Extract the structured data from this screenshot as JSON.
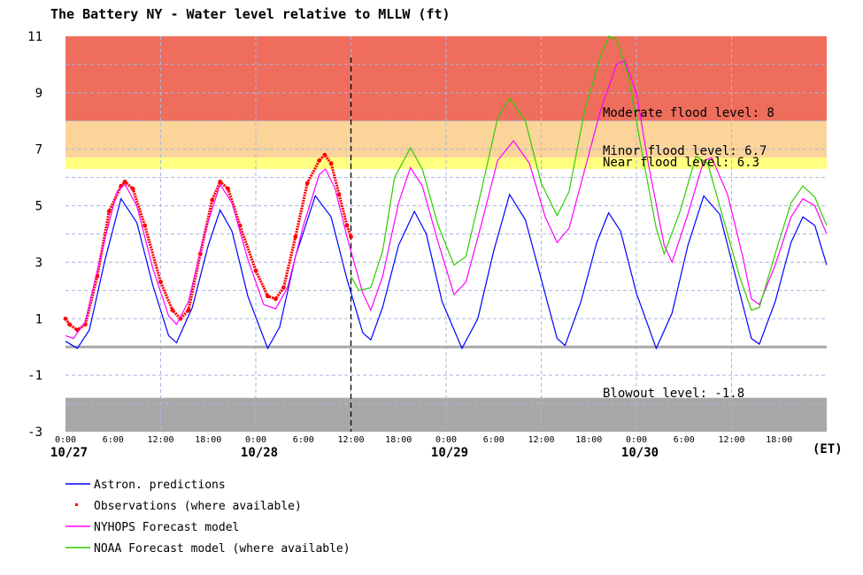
{
  "chart_data": {
    "type": "line",
    "title": "The Battery NY  -  Water level relative to MLLW (ft)",
    "time_unit_label": "(ET)",
    "ylim": [
      -3,
      11
    ],
    "yticks": [
      11,
      9,
      7,
      5,
      3,
      1,
      -1,
      -3
    ],
    "xlim_hours": [
      0,
      96
    ],
    "xticks": [
      {
        "hour": 0,
        "label": "0:00"
      },
      {
        "hour": 6,
        "label": "6:00"
      },
      {
        "hour": 12,
        "label": "12:00"
      },
      {
        "hour": 18,
        "label": "18:00"
      },
      {
        "hour": 24,
        "label": "0:00"
      },
      {
        "hour": 30,
        "label": "6:00"
      },
      {
        "hour": 36,
        "label": "12:00"
      },
      {
        "hour": 42,
        "label": "18:00"
      },
      {
        "hour": 48,
        "label": "0:00"
      },
      {
        "hour": 54,
        "label": "6:00"
      },
      {
        "hour": 60,
        "label": "12:00"
      },
      {
        "hour": 66,
        "label": "18:00"
      },
      {
        "hour": 72,
        "label": "0:00"
      },
      {
        "hour": 78,
        "label": "6:00"
      },
      {
        "hour": 84,
        "label": "12:00"
      },
      {
        "hour": 90,
        "label": "18:00"
      }
    ],
    "dates": [
      {
        "hour": 0,
        "label": "10/27"
      },
      {
        "hour": 24,
        "label": "10/28"
      },
      {
        "hour": 48,
        "label": "10/29"
      },
      {
        "hour": 72,
        "label": "10/30"
      }
    ],
    "now_hour": 36,
    "zones": [
      {
        "name": "moderate",
        "from": 8,
        "to": 11,
        "color": "#ee6d5d",
        "label": "Moderate flood level: 8"
      },
      {
        "name": "minor",
        "from": 6.7,
        "to": 8,
        "color": "#fbd49a",
        "label": "Minor flood level: 6.7"
      },
      {
        "name": "near",
        "from": 6.3,
        "to": 6.7,
        "color": "#ffff80",
        "label": "Near flood level: 6.3"
      },
      {
        "name": "blowout",
        "from": -3,
        "to": -1.8,
        "color": "#a8a8a8",
        "label": "Blowout level: -1.8"
      }
    ],
    "zero_line": 0,
    "series": [
      {
        "name": "Astron. predictions",
        "color": "#0000ff",
        "style": "line",
        "points": [
          [
            0,
            0.2
          ],
          [
            1.5,
            -0.05
          ],
          [
            3,
            0.6
          ],
          [
            5,
            3.1
          ],
          [
            7,
            5.25
          ],
          [
            9,
            4.4
          ],
          [
            11,
            2.2
          ],
          [
            13,
            0.4
          ],
          [
            14,
            0.15
          ],
          [
            16,
            1.4
          ],
          [
            18,
            3.6
          ],
          [
            19.5,
            4.85
          ],
          [
            21,
            4.1
          ],
          [
            23,
            1.8
          ],
          [
            25.5,
            -0.05
          ],
          [
            27,
            0.7
          ],
          [
            29,
            3.2
          ],
          [
            31.5,
            5.35
          ],
          [
            33.5,
            4.6
          ],
          [
            35.5,
            2.4
          ],
          [
            37.5,
            0.5
          ],
          [
            38.5,
            0.25
          ],
          [
            40,
            1.4
          ],
          [
            42,
            3.6
          ],
          [
            44,
            4.8
          ],
          [
            45.5,
            4.0
          ],
          [
            47.5,
            1.6
          ],
          [
            50,
            -0.05
          ],
          [
            52,
            1.0
          ],
          [
            54,
            3.4
          ],
          [
            56,
            5.4
          ],
          [
            58,
            4.5
          ],
          [
            60,
            2.4
          ],
          [
            62,
            0.3
          ],
          [
            63,
            0.05
          ],
          [
            65,
            1.6
          ],
          [
            67,
            3.7
          ],
          [
            68.5,
            4.75
          ],
          [
            70,
            4.1
          ],
          [
            72,
            1.9
          ],
          [
            74.5,
            -0.05
          ],
          [
            76.5,
            1.2
          ],
          [
            78.5,
            3.6
          ],
          [
            80.5,
            5.35
          ],
          [
            82.5,
            4.7
          ],
          [
            84.5,
            2.5
          ],
          [
            86.5,
            0.3
          ],
          [
            87.5,
            0.1
          ],
          [
            89.5,
            1.6
          ],
          [
            91.5,
            3.7
          ],
          [
            93,
            4.6
          ],
          [
            94.5,
            4.3
          ],
          [
            96,
            2.9
          ]
        ]
      },
      {
        "name": "Observations (where available)",
        "color": "#ff0000",
        "style": "dots",
        "points": [
          [
            0,
            1.0
          ],
          [
            0.5,
            0.8
          ],
          [
            1.5,
            0.6
          ],
          [
            2.5,
            0.8
          ],
          [
            4,
            2.5
          ],
          [
            5.5,
            4.8
          ],
          [
            7,
            5.7
          ],
          [
            7.5,
            5.85
          ],
          [
            8.5,
            5.6
          ],
          [
            10,
            4.3
          ],
          [
            12,
            2.3
          ],
          [
            13.5,
            1.3
          ],
          [
            14.5,
            1.0
          ],
          [
            15.5,
            1.3
          ],
          [
            17,
            3.3
          ],
          [
            18.5,
            5.2
          ],
          [
            19.5,
            5.85
          ],
          [
            20.5,
            5.6
          ],
          [
            22,
            4.3
          ],
          [
            24,
            2.7
          ],
          [
            25.5,
            1.8
          ],
          [
            26.5,
            1.7
          ],
          [
            27.5,
            2.1
          ],
          [
            29,
            3.9
          ],
          [
            30.5,
            5.8
          ],
          [
            32,
            6.6
          ],
          [
            32.7,
            6.8
          ],
          [
            33.5,
            6.5
          ],
          [
            34.5,
            5.4
          ],
          [
            35.5,
            4.3
          ],
          [
            36,
            3.9
          ]
        ]
      },
      {
        "name": "NYHOPS Forecast model",
        "color": "#ff00ff",
        "style": "line",
        "points": [
          [
            0,
            0.4
          ],
          [
            1,
            0.3
          ],
          [
            2.5,
            0.9
          ],
          [
            4.5,
            3.3
          ],
          [
            6.5,
            5.5
          ],
          [
            7.5,
            5.75
          ],
          [
            9,
            5.0
          ],
          [
            11,
            2.8
          ],
          [
            13,
            1.1
          ],
          [
            14,
            0.8
          ],
          [
            15.5,
            1.6
          ],
          [
            17.5,
            4.0
          ],
          [
            19.5,
            5.75
          ],
          [
            21,
            5.1
          ],
          [
            23,
            3.1
          ],
          [
            25,
            1.5
          ],
          [
            26.5,
            1.35
          ],
          [
            28,
            2.1
          ],
          [
            30,
            4.3
          ],
          [
            32,
            6.1
          ],
          [
            32.8,
            6.3
          ],
          [
            34,
            5.6
          ],
          [
            35.5,
            3.9
          ],
          [
            37.5,
            1.9
          ],
          [
            38.5,
            1.3
          ],
          [
            40,
            2.5
          ],
          [
            42,
            5.1
          ],
          [
            43.5,
            6.35
          ],
          [
            45,
            5.7
          ],
          [
            47,
            3.7
          ],
          [
            49,
            1.85
          ],
          [
            50.5,
            2.3
          ],
          [
            52.5,
            4.4
          ],
          [
            54.5,
            6.6
          ],
          [
            56.5,
            7.3
          ],
          [
            58.5,
            6.5
          ],
          [
            60.5,
            4.6
          ],
          [
            62,
            3.7
          ],
          [
            63.5,
            4.2
          ],
          [
            65.5,
            6.3
          ],
          [
            67.5,
            8.4
          ],
          [
            69.5,
            10.0
          ],
          [
            70.5,
            10.15
          ],
          [
            72,
            9.0
          ],
          [
            73.5,
            6.5
          ],
          [
            75.5,
            3.6
          ],
          [
            76.5,
            3.0
          ],
          [
            78.5,
            4.7
          ],
          [
            80.5,
            6.6
          ],
          [
            81.5,
            6.7
          ],
          [
            83.5,
            5.4
          ],
          [
            85.5,
            3.1
          ],
          [
            86.5,
            1.7
          ],
          [
            87.5,
            1.5
          ],
          [
            89.5,
            2.9
          ],
          [
            91.5,
            4.6
          ],
          [
            93,
            5.25
          ],
          [
            94.5,
            5.0
          ],
          [
            96,
            4.0
          ]
        ]
      },
      {
        "name": "NOAA Forecast model (where available)",
        "color": "#33cc00",
        "style": "line",
        "points": [
          [
            36,
            2.5
          ],
          [
            37,
            2.0
          ],
          [
            38.5,
            2.1
          ],
          [
            40,
            3.4
          ],
          [
            41.5,
            6.0
          ],
          [
            43.5,
            7.05
          ],
          [
            45,
            6.3
          ],
          [
            47,
            4.3
          ],
          [
            49,
            2.9
          ],
          [
            50.5,
            3.2
          ],
          [
            52.5,
            5.6
          ],
          [
            54.5,
            8.1
          ],
          [
            56,
            8.8
          ],
          [
            58,
            8.0
          ],
          [
            60,
            5.8
          ],
          [
            62,
            4.65
          ],
          [
            63.5,
            5.5
          ],
          [
            65.5,
            8.4
          ],
          [
            67.5,
            10.3
          ],
          [
            68.5,
            11.0
          ],
          [
            69.5,
            10.9
          ],
          [
            71,
            9.6
          ],
          [
            72.5,
            7.2
          ],
          [
            74.5,
            4.2
          ],
          [
            75.5,
            3.3
          ],
          [
            77.5,
            4.8
          ],
          [
            79.5,
            6.75
          ],
          [
            81,
            6.5
          ],
          [
            83,
            4.5
          ],
          [
            85,
            2.5
          ],
          [
            86.5,
            1.3
          ],
          [
            87.5,
            1.4
          ],
          [
            89.5,
            3.3
          ],
          [
            91.5,
            5.1
          ],
          [
            93,
            5.7
          ],
          [
            94.5,
            5.3
          ],
          [
            96,
            4.3
          ]
        ]
      }
    ]
  }
}
